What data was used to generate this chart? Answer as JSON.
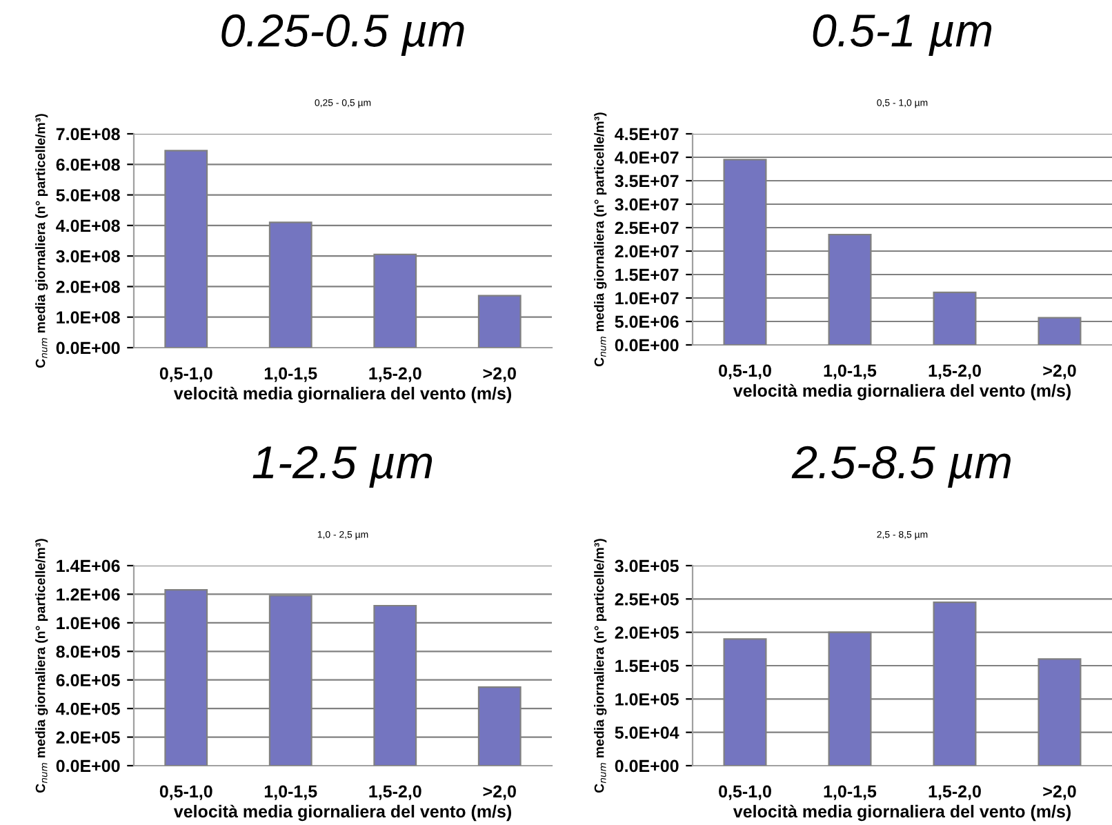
{
  "chart_data": [
    {
      "type": "bar",
      "title": "0.25-0.5 µm",
      "subtitle": "0,25 - 0,5 µm",
      "xlabel": "velocità media giornaliera del vento (m/s)",
      "ylabel": "C$_{num}$ media giornaliera (n° particelle/m³)",
      "categories": [
        "0,5-1,0",
        "1,0-1,5",
        "1,5-2,0",
        ">2,0"
      ],
      "values": [
        645000000.0,
        410000000.0,
        305000000.0,
        170000000.0
      ],
      "color": "#7475c0",
      "ylim": [
        0,
        700000000.0
      ],
      "yticks": [
        {
          "value": 0,
          "label": "0.0E+00"
        },
        {
          "value": 100000000.0,
          "label": "1.0E+08"
        },
        {
          "value": 200000000.0,
          "label": "2.0E+08"
        },
        {
          "value": 300000000.0,
          "label": "3.0E+08"
        },
        {
          "value": 400000000.0,
          "label": "4.0E+08"
        },
        {
          "value": 500000000.0,
          "label": "5.0E+08"
        },
        {
          "value": 600000000.0,
          "label": "6.0E+08"
        },
        {
          "value": 700000000.0,
          "label": "7.0E+08"
        }
      ],
      "grid": "y",
      "legend": false
    },
    {
      "type": "bar",
      "title": "0.5-1 µm",
      "subtitle": "0,5 - 1,0 µm",
      "xlabel": "velocità media giornaliera del vento (m/s)",
      "ylabel": "C$_{num}$ media giornaliera (n° particelle/m³)",
      "categories": [
        "0,5-1,0",
        "1,0-1,5",
        "1,5-2,0",
        ">2,0"
      ],
      "values": [
        39500000.0,
        23500000.0,
        11200000.0,
        5800000.0
      ],
      "color": "#7475c0",
      "ylim": [
        0,
        45000000.0
      ],
      "yticks": [
        {
          "value": 0,
          "label": "0.0E+00"
        },
        {
          "value": 5000000.0,
          "label": "5.0E+06"
        },
        {
          "value": 10000000.0,
          "label": "1.0E+07"
        },
        {
          "value": 15000000.0,
          "label": "1.5E+07"
        },
        {
          "value": 20000000.0,
          "label": "2.0E+07"
        },
        {
          "value": 25000000.0,
          "label": "2.5E+07"
        },
        {
          "value": 30000000.0,
          "label": "3.0E+07"
        },
        {
          "value": 35000000.0,
          "label": "3.5E+07"
        },
        {
          "value": 40000000.0,
          "label": "4.0E+07"
        },
        {
          "value": 45000000.0,
          "label": "4.5E+07"
        }
      ],
      "grid": "y",
      "legend": false
    },
    {
      "type": "bar",
      "title": "1-2.5 µm",
      "subtitle": "1,0 - 2,5 µm",
      "xlabel": "velocità media giornaliera del vento (m/s)",
      "ylabel": "C$_{num}$ media giornaliera (n° particelle/m³)",
      "categories": [
        "0,5-1,0",
        "1,0-1,5",
        "1,5-2,0",
        ">2,0"
      ],
      "values": [
        1230000.0,
        1190000.0,
        1120000.0,
        550000.0
      ],
      "color": "#7475c0",
      "ylim": [
        0,
        1400000.0
      ],
      "yticks": [
        {
          "value": 0,
          "label": "0.0E+00"
        },
        {
          "value": 200000.0,
          "label": "2.0E+05"
        },
        {
          "value": 400000.0,
          "label": "4.0E+05"
        },
        {
          "value": 600000.0,
          "label": "6.0E+05"
        },
        {
          "value": 800000.0,
          "label": "8.0E+05"
        },
        {
          "value": 1000000.0,
          "label": "1.0E+06"
        },
        {
          "value": 1200000.0,
          "label": "1.2E+06"
        },
        {
          "value": 1400000.0,
          "label": "1.4E+06"
        }
      ],
      "grid": "y",
      "legend": false
    },
    {
      "type": "bar",
      "title": "2.5-8.5 µm",
      "subtitle": "2,5 - 8,5 µm",
      "xlabel": "velocità media giornaliera del vento (m/s)",
      "ylabel": "C$_{num}$ media giornaliera (n° particelle/m³)",
      "categories": [
        "0,5-1,0",
        "1,0-1,5",
        "1,5-2,0",
        ">2,0"
      ],
      "values": [
        190000.0,
        200000.0,
        245000.0,
        160000.0
      ],
      "color": "#7475c0",
      "ylim": [
        0,
        300000.0
      ],
      "yticks": [
        {
          "value": 0,
          "label": "0.0E+00"
        },
        {
          "value": 50000.0,
          "label": "5.0E+04"
        },
        {
          "value": 100000.0,
          "label": "1.0E+05"
        },
        {
          "value": 150000.0,
          "label": "1.5E+05"
        },
        {
          "value": 200000.0,
          "label": "2.0E+05"
        },
        {
          "value": 250000.0,
          "label": "2.5E+05"
        },
        {
          "value": 300000.0,
          "label": "3.0E+05"
        }
      ],
      "grid": "y",
      "legend": false
    }
  ]
}
